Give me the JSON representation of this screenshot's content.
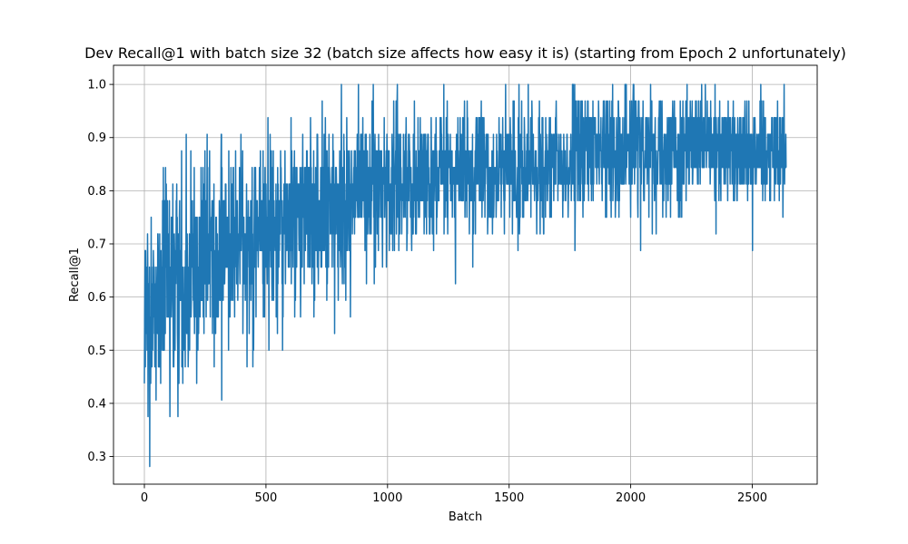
{
  "chart_data": {
    "type": "line",
    "title": "Dev Recall@1 with batch size 32 (batch size affects how easy it is) (starting from Epoch 2 unfortunately)",
    "xlabel": "Batch",
    "ylabel": "Recall@1",
    "xlim": [
      -127,
      2767
    ],
    "ylim": [
      0.248,
      1.036
    ],
    "grid": true,
    "x_ticks": [
      0,
      500,
      1000,
      1500,
      2000,
      2500
    ],
    "y_ticks": [
      0.3,
      0.4,
      0.5,
      0.6,
      0.7,
      0.8,
      0.9,
      1.0
    ],
    "x_tick_labels": [
      "0",
      "500",
      "1000",
      "1500",
      "2000",
      "2500"
    ],
    "y_tick_labels": [
      "0.3",
      "0.4",
      "0.5",
      "0.6",
      "0.7",
      "0.8",
      "0.9",
      "1.0"
    ],
    "series": [
      {
        "color": "#1f77b4",
        "n_points": 2640,
        "x_start": 0,
        "x_end": 2640,
        "trend": [
          {
            "x": 0,
            "y": 0.54
          },
          {
            "x": 100,
            "y": 0.62
          },
          {
            "x": 250,
            "y": 0.68
          },
          {
            "x": 500,
            "y": 0.73
          },
          {
            "x": 800,
            "y": 0.77
          },
          {
            "x": 900,
            "y": 0.81
          },
          {
            "x": 1200,
            "y": 0.83
          },
          {
            "x": 1500,
            "y": 0.835
          },
          {
            "x": 1750,
            "y": 0.845
          },
          {
            "x": 1770,
            "y": 0.88
          },
          {
            "x": 2200,
            "y": 0.88
          },
          {
            "x": 2640,
            "y": 0.88
          }
        ],
        "noise": [
          {
            "x": 0,
            "amp": 0.1
          },
          {
            "x": 300,
            "amp": 0.09
          },
          {
            "x": 800,
            "amp": 0.08
          },
          {
            "x": 900,
            "amp": 0.065
          },
          {
            "x": 1760,
            "amp": 0.055
          },
          {
            "x": 2640,
            "amp": 0.05
          }
        ],
        "y_min": 0.281,
        "y_max": 1.0,
        "notable_points": [
          {
            "x": 5,
            "y": 0.6875
          },
          {
            "x": 15,
            "y": 0.375
          },
          {
            "x": 22,
            "y": 0.28125
          },
          {
            "x": 28,
            "y": 0.75
          },
          {
            "x": 78,
            "y": 0.84375
          },
          {
            "x": 105,
            "y": 0.375
          },
          {
            "x": 172,
            "y": 0.40625
          },
          {
            "x": 172,
            "y": 0.90625
          },
          {
            "x": 215,
            "y": 0.4375
          },
          {
            "x": 258,
            "y": 0.90625
          },
          {
            "x": 318,
            "y": 0.40625
          },
          {
            "x": 508,
            "y": 0.9375
          },
          {
            "x": 512,
            "y": 0.5
          },
          {
            "x": 568,
            "y": 0.5
          },
          {
            "x": 782,
            "y": 0.53125
          },
          {
            "x": 880,
            "y": 1.0
          },
          {
            "x": 945,
            "y": 0.625
          },
          {
            "x": 1040,
            "y": 1.0
          },
          {
            "x": 1350,
            "y": 0.65625
          },
          {
            "x": 1540,
            "y": 1.0
          },
          {
            "x": 1760,
            "y": 1.0
          },
          {
            "x": 1770,
            "y": 0.6875
          },
          {
            "x": 2010,
            "y": 1.0
          },
          {
            "x": 2040,
            "y": 0.6875
          },
          {
            "x": 2350,
            "y": 0.71875
          },
          {
            "x": 2500,
            "y": 0.6875
          },
          {
            "x": 2630,
            "y": 1.0
          }
        ]
      }
    ]
  }
}
